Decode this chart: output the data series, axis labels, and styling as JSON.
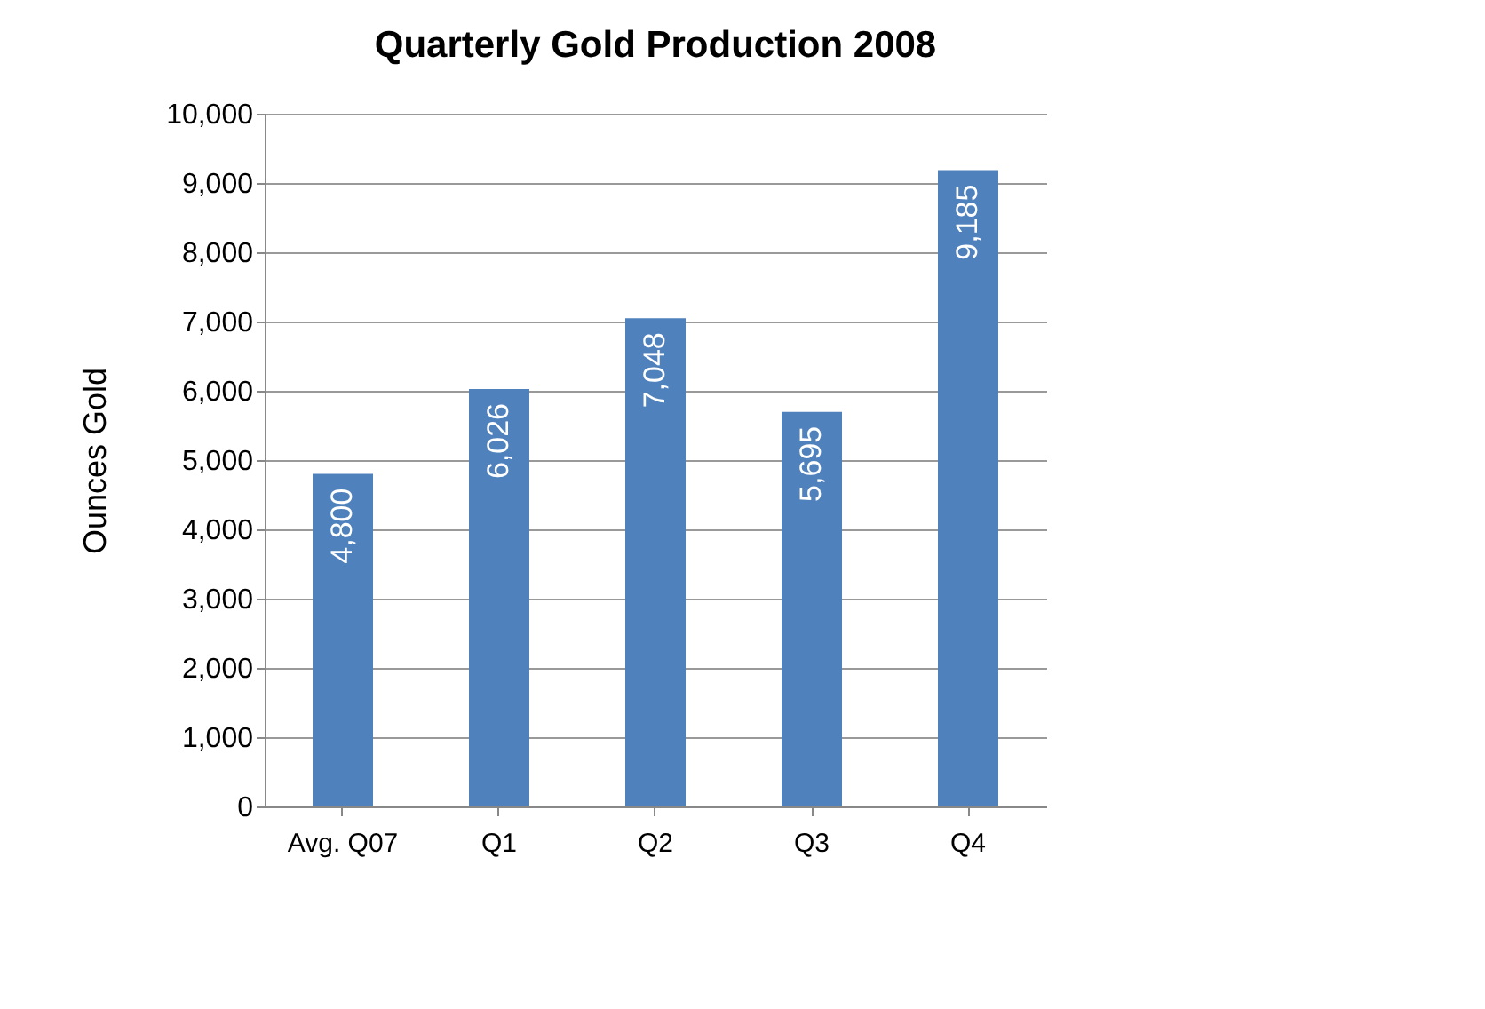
{
  "chart_data": {
    "type": "bar",
    "title": "Quarterly Gold Production 2008",
    "ylabel": "Ounces Gold",
    "categories": [
      "Avg. Q07",
      "Q1",
      "Q2",
      "Q3",
      "Q4"
    ],
    "values": [
      4800,
      6026,
      7048,
      5695,
      9185
    ],
    "value_labels": [
      "4,800",
      "6,026",
      "7,048",
      "5,695",
      "9,185"
    ],
    "color": "#4f81bd",
    "ylim": [
      0,
      10000
    ],
    "yticks": [
      {
        "value": 0,
        "label": "0"
      },
      {
        "value": 1000,
        "label": "1,000"
      },
      {
        "value": 2000,
        "label": "2,000"
      },
      {
        "value": 3000,
        "label": "3,000"
      },
      {
        "value": 4000,
        "label": "4,000"
      },
      {
        "value": 5000,
        "label": "5,000"
      },
      {
        "value": 6000,
        "label": "6,000"
      },
      {
        "value": 7000,
        "label": "7,000"
      },
      {
        "value": 8000,
        "label": "8,000"
      },
      {
        "value": 9000,
        "label": "9,000"
      },
      {
        "value": 10000,
        "label": "10,000"
      }
    ],
    "grid": "y"
  }
}
